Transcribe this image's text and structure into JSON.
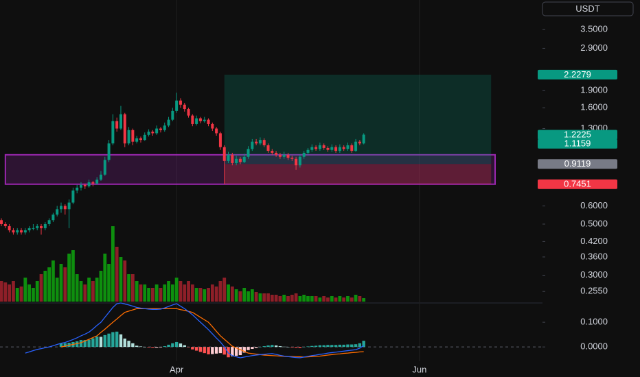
{
  "chart_data": {
    "type": "candlestick",
    "currency": "USDT",
    "log": true,
    "up_color": "#089981",
    "down_color": "#f23645",
    "volume_colors": [
      "#0e8f0e",
      "#8e1f28"
    ],
    "xlim": [
      -0.35,
      135.9
    ],
    "xticks": [
      {
        "value": 44,
        "label": "Apr"
      },
      {
        "value": 105,
        "label": "Jun"
      }
    ],
    "ylim": [
      0.2304,
      4.7
    ],
    "yticks": [
      {
        "value": 3.5,
        "label": "3.5000"
      },
      {
        "value": 2.9,
        "label": "2.9000"
      },
      {
        "value": 1.9,
        "label": "1.9000"
      },
      {
        "value": 1.6,
        "label": "1.6000"
      },
      {
        "value": 1.3,
        "label": "1.3000"
      },
      {
        "value": 0.6,
        "label": "0.6000"
      },
      {
        "value": 0.5,
        "label": "0.5000"
      },
      {
        "value": 0.42,
        "label": "0.4200"
      },
      {
        "value": 0.36,
        "label": "0.3600"
      },
      {
        "value": 0.3,
        "label": "0.3000"
      },
      {
        "value": 0.255,
        "label": "0.2550"
      }
    ],
    "x": [
      0,
      1,
      2,
      3,
      4,
      5,
      6,
      7,
      8,
      9,
      10,
      11,
      12,
      13,
      14,
      15,
      16,
      17,
      18,
      19,
      20,
      21,
      22,
      23,
      24,
      25,
      26,
      27,
      28,
      29,
      30,
      31,
      32,
      33,
      34,
      35,
      36,
      37,
      38,
      39,
      40,
      41,
      42,
      43,
      44,
      45,
      46,
      47,
      48,
      49,
      50,
      51,
      52,
      53,
      54,
      55,
      56,
      57,
      58,
      59,
      60,
      61,
      62,
      63,
      64,
      65,
      66,
      67,
      68,
      69,
      70,
      71,
      72,
      73,
      74,
      75,
      76,
      77,
      78,
      79,
      80,
      81,
      82,
      83,
      84,
      85,
      86,
      87,
      88,
      89,
      90,
      91
    ],
    "candles": [
      [
        0.52,
        0.53,
        0.49,
        0.5
      ],
      [
        0.5,
        0.51,
        0.48,
        0.49
      ],
      [
        0.49,
        0.5,
        0.46,
        0.47
      ],
      [
        0.47,
        0.48,
        0.45,
        0.46
      ],
      [
        0.46,
        0.48,
        0.45,
        0.47
      ],
      [
        0.47,
        0.48,
        0.45,
        0.46
      ],
      [
        0.46,
        0.48,
        0.45,
        0.47
      ],
      [
        0.47,
        0.49,
        0.46,
        0.48
      ],
      [
        0.48,
        0.5,
        0.47,
        0.48
      ],
      [
        0.48,
        0.5,
        0.47,
        0.49
      ],
      [
        0.49,
        0.5,
        0.45,
        0.48
      ],
      [
        0.48,
        0.51,
        0.47,
        0.5
      ],
      [
        0.5,
        0.53,
        0.49,
        0.52
      ],
      [
        0.52,
        0.56,
        0.51,
        0.55
      ],
      [
        0.55,
        0.6,
        0.54,
        0.58
      ],
      [
        0.58,
        0.62,
        0.56,
        0.6
      ],
      [
        0.6,
        0.61,
        0.55,
        0.58
      ],
      [
        0.58,
        0.64,
        0.48,
        0.62
      ],
      [
        0.62,
        0.72,
        0.61,
        0.7
      ],
      [
        0.7,
        0.74,
        0.68,
        0.72
      ],
      [
        0.72,
        0.76,
        0.7,
        0.74
      ],
      [
        0.74,
        0.75,
        0.71,
        0.73
      ],
      [
        0.73,
        0.78,
        0.72,
        0.76
      ],
      [
        0.76,
        0.77,
        0.73,
        0.75
      ],
      [
        0.75,
        0.8,
        0.74,
        0.78
      ],
      [
        0.78,
        0.85,
        0.77,
        0.82
      ],
      [
        0.82,
        0.98,
        0.81,
        0.95
      ],
      [
        0.95,
        1.16,
        0.93,
        1.12
      ],
      [
        1.12,
        1.5,
        1.1,
        1.4
      ],
      [
        1.4,
        1.45,
        1.26,
        1.3
      ],
      [
        1.3,
        1.63,
        1.28,
        1.5
      ],
      [
        1.5,
        1.52,
        1.08,
        1.12
      ],
      [
        1.12,
        1.32,
        1.1,
        1.28
      ],
      [
        1.28,
        1.3,
        1.1,
        1.14
      ],
      [
        1.14,
        1.21,
        1.12,
        1.18
      ],
      [
        1.18,
        1.2,
        1.13,
        1.16
      ],
      [
        1.16,
        1.25,
        1.15,
        1.22
      ],
      [
        1.22,
        1.29,
        1.2,
        1.26
      ],
      [
        1.26,
        1.28,
        1.21,
        1.24
      ],
      [
        1.24,
        1.34,
        1.22,
        1.3
      ],
      [
        1.3,
        1.32,
        1.25,
        1.28
      ],
      [
        1.28,
        1.38,
        1.26,
        1.34
      ],
      [
        1.34,
        1.46,
        1.32,
        1.42
      ],
      [
        1.42,
        1.6,
        1.4,
        1.55
      ],
      [
        1.55,
        1.86,
        1.52,
        1.72
      ],
      [
        1.72,
        1.76,
        1.6,
        1.65
      ],
      [
        1.65,
        1.68,
        1.54,
        1.58
      ],
      [
        1.58,
        1.6,
        1.45,
        1.48
      ],
      [
        1.48,
        1.5,
        1.33,
        1.36
      ],
      [
        1.36,
        1.48,
        1.34,
        1.44
      ],
      [
        1.44,
        1.46,
        1.37,
        1.4
      ],
      [
        1.4,
        1.46,
        1.38,
        1.42
      ],
      [
        1.42,
        1.44,
        1.33,
        1.36
      ],
      [
        1.36,
        1.38,
        1.27,
        1.3
      ],
      [
        1.3,
        1.32,
        1.21,
        1.24
      ],
      [
        1.24,
        1.26,
        1.05,
        1.08
      ],
      [
        1.08,
        1.1,
        0.745,
        0.94
      ],
      [
        0.94,
        1.03,
        0.92,
        1.0
      ],
      [
        1.0,
        1.02,
        0.9,
        0.92
      ],
      [
        0.92,
        0.99,
        0.9,
        0.96
      ],
      [
        0.96,
        0.98,
        0.91,
        0.93
      ],
      [
        0.93,
        1.01,
        0.92,
        0.98
      ],
      [
        0.98,
        1.09,
        0.96,
        1.06
      ],
      [
        1.06,
        1.17,
        1.04,
        1.14
      ],
      [
        1.14,
        1.17,
        1.1,
        1.12
      ],
      [
        1.12,
        1.19,
        1.1,
        1.16
      ],
      [
        1.16,
        1.18,
        1.08,
        1.1
      ],
      [
        1.1,
        1.12,
        1.02,
        1.04
      ],
      [
        1.04,
        1.06,
        1.0,
        1.02
      ],
      [
        1.02,
        1.04,
        0.98,
        1.0
      ],
      [
        1.0,
        1.02,
        0.96,
        0.98
      ],
      [
        0.98,
        1.03,
        0.96,
        1.0
      ],
      [
        1.0,
        1.02,
        0.95,
        0.97
      ],
      [
        0.97,
        0.99,
        0.94,
        0.96
      ],
      [
        0.96,
        0.98,
        0.86,
        0.9
      ],
      [
        0.9,
        1.0,
        0.88,
        0.98
      ],
      [
        0.98,
        1.04,
        0.96,
        1.02
      ],
      [
        1.02,
        1.07,
        1.0,
        1.05
      ],
      [
        1.05,
        1.11,
        1.03,
        1.08
      ],
      [
        1.08,
        1.1,
        1.04,
        1.06
      ],
      [
        1.06,
        1.13,
        1.04,
        1.1
      ],
      [
        1.1,
        1.12,
        1.05,
        1.07
      ],
      [
        1.07,
        1.09,
        1.03,
        1.05
      ],
      [
        1.05,
        1.11,
        1.03,
        1.08
      ],
      [
        1.08,
        1.1,
        1.02,
        1.04
      ],
      [
        1.04,
        1.11,
        1.02,
        1.08
      ],
      [
        1.08,
        1.1,
        1.04,
        1.06
      ],
      [
        1.06,
        1.13,
        1.04,
        1.1
      ],
      [
        1.1,
        1.12,
        1.02,
        1.04
      ],
      [
        1.04,
        1.17,
        1.03,
        1.14
      ],
      [
        1.14,
        1.16,
        1.1,
        1.12
      ],
      [
        1.12,
        1.24,
        1.11,
        1.2225
      ]
    ],
    "volume": [
      30,
      28,
      25,
      30,
      20,
      22,
      35,
      25,
      20,
      30,
      40,
      45,
      50,
      60,
      35,
      55,
      50,
      70,
      75,
      40,
      30,
      25,
      35,
      30,
      35,
      45,
      70,
      55,
      110,
      80,
      65,
      60,
      40,
      40,
      30,
      25,
      25,
      20,
      20,
      25,
      20,
      25,
      30,
      25,
      35,
      30,
      25,
      30,
      25,
      20,
      20,
      18,
      20,
      25,
      22,
      30,
      35,
      25,
      22,
      18,
      15,
      20,
      15,
      18,
      14,
      12,
      12,
      12,
      10,
      10,
      8,
      10,
      8,
      10,
      12,
      8,
      10,
      8,
      8,
      8,
      6,
      8,
      6,
      8,
      6,
      8,
      6,
      8,
      6,
      10,
      8,
      5
    ],
    "position": {
      "target": 2.2279,
      "entry": 0.9119,
      "stop": 0.7451,
      "x": [
        56,
        123
      ]
    },
    "zone": {
      "low": 0.7451,
      "high": 1.0,
      "x": [
        1,
        124
      ]
    },
    "price_labels": [
      {
        "value": 2.2279,
        "color": "#089981"
      },
      {
        "value": 1.2225,
        "color": "#089981"
      },
      {
        "value": 1.1159,
        "color": "#089981"
      },
      {
        "value": 0.9119,
        "color": "#787b86"
      },
      {
        "value": 0.7451,
        "color": "#f23645"
      }
    ],
    "macd": {
      "ylim": [
        -0.044,
        0.178
      ],
      "yticks": [
        {
          "value": 0.1,
          "label": "0.1000"
        },
        {
          "value": 0,
          "label": "0.0000"
        }
      ],
      "line": {
        "color": "#2962ff",
        "values": [
          null,
          null,
          null,
          null,
          null,
          null,
          -0.025,
          -0.02,
          -0.015,
          -0.01,
          -0.007,
          -0.003,
          0.0,
          0.005,
          0.01,
          0.015,
          0.018,
          0.024,
          0.03,
          0.037,
          0.045,
          0.052,
          0.06,
          0.073,
          0.087,
          0.1,
          0.12,
          0.14,
          0.16,
          0.175,
          0.178,
          0.174,
          0.17,
          0.165,
          0.16,
          0.157,
          0.155,
          0.153,
          0.152,
          0.152,
          0.153,
          0.158,
          0.164,
          0.17,
          0.175,
          0.165,
          0.155,
          0.143,
          0.13,
          0.115,
          0.1,
          0.085,
          0.07,
          0.053,
          0.036,
          0.02,
          0.0,
          -0.025,
          -0.035,
          -0.04,
          -0.044,
          -0.041,
          -0.038,
          -0.035,
          -0.033,
          -0.031,
          -0.03,
          -0.028,
          -0.027,
          -0.03,
          -0.034,
          -0.037,
          -0.039,
          -0.041,
          -0.043,
          -0.044,
          -0.041,
          -0.038,
          -0.035,
          -0.033,
          -0.03,
          -0.028,
          -0.025,
          -0.023,
          -0.021,
          -0.019,
          -0.017,
          -0.015,
          -0.013,
          -0.011,
          -0.005,
          0.006
        ]
      },
      "signal": {
        "color": "#ff6d00",
        "values": [
          null,
          null,
          null,
          null,
          null,
          null,
          null,
          null,
          null,
          null,
          null,
          null,
          null,
          null,
          null,
          0.0,
          0.003,
          0.007,
          0.01,
          0.014,
          0.017,
          0.024,
          0.031,
          0.038,
          0.045,
          0.059,
          0.072,
          0.086,
          0.1,
          0.113,
          0.127,
          0.14,
          0.145,
          0.15,
          0.155,
          0.155,
          0.155,
          0.155,
          0.155,
          0.155,
          0.155,
          0.155,
          0.155,
          0.155,
          0.155,
          0.151,
          0.148,
          0.144,
          0.14,
          0.13,
          0.12,
          0.11,
          0.1,
          0.082,
          0.063,
          0.045,
          0.031,
          0.017,
          0.003,
          -0.004,
          -0.011,
          -0.018,
          -0.025,
          -0.027,
          -0.029,
          -0.031,
          -0.033,
          -0.034,
          -0.035,
          -0.036,
          -0.037,
          -0.038,
          -0.039,
          -0.039,
          -0.04,
          -0.04,
          -0.041,
          -0.04,
          -0.039,
          -0.038,
          -0.037,
          -0.035,
          -0.033,
          -0.031,
          -0.029,
          -0.028,
          -0.026,
          -0.025,
          -0.023,
          -0.022,
          -0.02,
          -0.019
        ]
      },
      "histogram": {
        "colors": [
          "#26a69a",
          "#b2dfdb",
          "#ff5252",
          "#ffcdd2"
        ],
        "values": [
          null,
          null,
          null,
          null,
          null,
          null,
          null,
          null,
          null,
          null,
          null,
          null,
          null,
          null,
          null,
          0.015,
          0.015,
          0.017,
          0.02,
          0.023,
          0.028,
          0.028,
          0.029,
          0.035,
          0.042,
          0.041,
          0.048,
          0.054,
          0.06,
          0.062,
          0.051,
          0.034,
          0.025,
          0.015,
          0.005,
          0.002,
          0.0,
          -0.002,
          -0.003,
          -0.003,
          -0.002,
          0.003,
          0.009,
          0.015,
          0.02,
          0.014,
          0.007,
          -0.001,
          -0.01,
          -0.015,
          -0.02,
          -0.025,
          -0.03,
          -0.029,
          -0.027,
          -0.025,
          -0.031,
          -0.042,
          -0.038,
          -0.036,
          -0.033,
          -0.023,
          -0.013,
          -0.008,
          -0.004,
          0.0,
          0.003,
          0.006,
          0.008,
          0.006,
          0.003,
          0.001,
          0.0,
          -0.002,
          -0.003,
          -0.004,
          0.0,
          0.002,
          0.004,
          0.005,
          0.007,
          0.007,
          0.008,
          0.008,
          0.008,
          0.009,
          0.009,
          0.01,
          0.01,
          0.011,
          0.015,
          0.025
        ]
      }
    }
  }
}
